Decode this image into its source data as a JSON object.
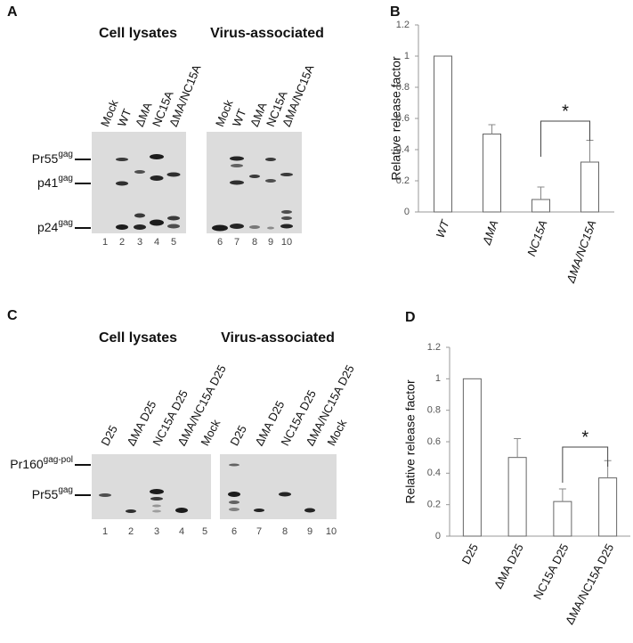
{
  "panels": [
    {
      "label": "A",
      "blots": [
        {
          "title": "Cell lysates",
          "lanes": [
            "Mock",
            "WT",
            "ΔMA",
            "NC15A",
            "ΔMA/NC15A"
          ],
          "numbers": [
            "1",
            "2",
            "3",
            "4",
            "5"
          ]
        },
        {
          "title": "Virus-associated",
          "lanes": [
            "Mock",
            "WT",
            "ΔMA",
            "NC15A",
            "ΔMA/NC15A"
          ],
          "numbers": [
            "6",
            "7",
            "8",
            "9",
            "10"
          ]
        }
      ],
      "markers": [
        {
          "name": "Pr55",
          "sup": "gag"
        },
        {
          "name": "p41",
          "sup": "gag"
        },
        {
          "name": "p24",
          "sup": "gag"
        }
      ]
    },
    {
      "label": "C",
      "blots": [
        {
          "title": "Cell lysates",
          "lanes": [
            "D25",
            "ΔMA D25",
            "NC15A D25",
            "ΔMA/NC15A D25",
            "Mock"
          ],
          "numbers": [
            "1",
            "2",
            "3",
            "4",
            "5"
          ]
        },
        {
          "title": "Virus-associated",
          "lanes": [
            "D25",
            "ΔMA D25",
            "NC15A D25",
            "ΔMA/NC15A D25",
            "Mock"
          ],
          "numbers": [
            "6",
            "7",
            "8",
            "9",
            "10"
          ]
        }
      ],
      "markers": [
        {
          "name": "Pr160",
          "sup": "gag-pol"
        },
        {
          "name": "Pr55",
          "sup": "gag"
        }
      ]
    }
  ],
  "chart_data": [
    {
      "type": "bar",
      "label": "B",
      "y_label": "Relative release factor",
      "categories": [
        "WT",
        "ΔMA",
        "NC15A",
        "ΔMA/NC15A"
      ],
      "values": [
        1,
        0.5,
        0.08,
        0.32
      ],
      "errors": [
        null,
        0.06,
        0.08,
        0.14
      ],
      "ylim": [
        0,
        1.2
      ],
      "yticks": [
        0,
        0.2,
        0.4,
        0.6,
        0.8,
        1,
        1.2
      ],
      "annotation": "*"
    },
    {
      "type": "bar",
      "label": "D",
      "y_label": "Relative release factor",
      "categories": [
        "D25",
        "ΔMA D25",
        "NC15A D25",
        "ΔMA/NC15A D25"
      ],
      "values": [
        1,
        0.5,
        0.22,
        0.37
      ],
      "errors": [
        null,
        0.12,
        0.08,
        0.11
      ],
      "ylim": [
        0,
        1.2
      ],
      "yticks": [
        0,
        0.2,
        0.4,
        0.6,
        0.8,
        1,
        1.2
      ],
      "annotation": "*"
    }
  ]
}
